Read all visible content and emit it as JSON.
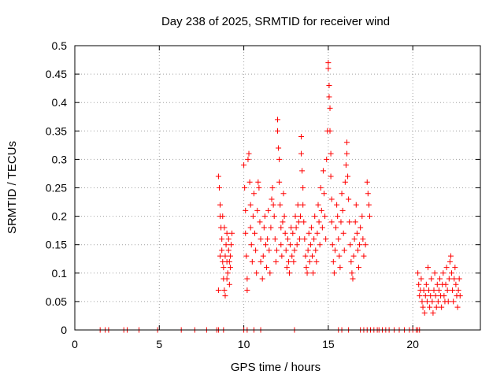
{
  "chart_data": {
    "type": "scatter",
    "title": "Day 238 of 2025, SRMTID for receiver wind",
    "xlabel": "GPS time / hours",
    "ylabel": "SRMTID / TECUs",
    "xlim": [
      0,
      24
    ],
    "ylim": [
      0,
      0.5
    ],
    "xticks": [
      0,
      5,
      10,
      15,
      20
    ],
    "xtick_labels": [
      "0",
      "5",
      "10",
      "15",
      "20"
    ],
    "yticks": [
      0,
      0.05,
      0.1,
      0.15,
      0.2,
      0.25,
      0.3,
      0.35,
      0.4,
      0.45,
      0.5
    ],
    "ytick_labels": [
      "0",
      "0.05",
      "0.1",
      "0.15",
      "0.2",
      "0.25",
      "0.3",
      "0.35",
      "0.4",
      "0.45",
      "0.5"
    ],
    "grid": true,
    "marker": "+",
    "color": "#ff0000",
    "series": [
      {
        "name": "SRMTID",
        "points": [
          [
            1.5,
            0
          ],
          [
            1.8,
            0
          ],
          [
            2.0,
            0
          ],
          [
            2.9,
            0
          ],
          [
            3.1,
            0
          ],
          [
            3.8,
            0
          ],
          [
            4.9,
            0
          ],
          [
            6.3,
            0
          ],
          [
            7.1,
            0
          ],
          [
            7.8,
            0
          ],
          [
            8.4,
            0
          ],
          [
            8.5,
            0
          ],
          [
            8.8,
            0
          ],
          [
            10.0,
            0
          ],
          [
            10.2,
            0
          ],
          [
            10.6,
            0
          ],
          [
            11.0,
            0
          ],
          [
            13.0,
            0
          ],
          [
            15.6,
            0
          ],
          [
            15.8,
            0
          ],
          [
            16.2,
            0
          ],
          [
            16.9,
            0
          ],
          [
            17.1,
            0
          ],
          [
            17.3,
            0
          ],
          [
            17.5,
            0
          ],
          [
            17.7,
            0
          ],
          [
            17.9,
            0
          ],
          [
            18.0,
            0
          ],
          [
            18.2,
            0
          ],
          [
            18.4,
            0
          ],
          [
            18.6,
            0
          ],
          [
            18.9,
            0
          ],
          [
            19.2,
            0
          ],
          [
            19.5,
            0
          ],
          [
            19.8,
            0
          ],
          [
            20.0,
            0
          ],
          [
            20.2,
            0
          ],
          [
            20.3,
            0
          ],
          [
            20.4,
            0
          ],
          [
            8.5,
            0.27
          ],
          [
            8.55,
            0.25
          ],
          [
            8.6,
            0.22
          ],
          [
            8.6,
            0.2
          ],
          [
            8.65,
            0.18
          ],
          [
            8.7,
            0.16
          ],
          [
            8.7,
            0.14
          ],
          [
            8.75,
            0.12
          ],
          [
            8.8,
            0.11
          ],
          [
            8.8,
            0.09
          ],
          [
            8.85,
            0.07
          ],
          [
            8.9,
            0.06
          ],
          [
            8.9,
            0.13
          ],
          [
            8.95,
            0.15
          ],
          [
            9.0,
            0.17
          ],
          [
            9.0,
            0.12
          ],
          [
            9.05,
            0.1
          ],
          [
            9.1,
            0.14
          ],
          [
            9.1,
            0.16
          ],
          [
            9.15,
            0.08
          ],
          [
            9.2,
            0.13
          ],
          [
            9.2,
            0.11
          ],
          [
            9.25,
            0.15
          ],
          [
            9.3,
            0.17
          ],
          [
            8.5,
            0.07
          ],
          [
            8.6,
            0.13
          ],
          [
            8.75,
            0.2
          ],
          [
            8.85,
            0.18
          ],
          [
            9.0,
            0.09
          ],
          [
            9.15,
            0.12
          ],
          [
            10.0,
            0.29
          ],
          [
            10.05,
            0.25
          ],
          [
            10.1,
            0.21
          ],
          [
            10.1,
            0.17
          ],
          [
            10.15,
            0.13
          ],
          [
            10.2,
            0.09
          ],
          [
            10.2,
            0.07
          ],
          [
            10.25,
            0.3
          ],
          [
            10.3,
            0.31
          ],
          [
            10.35,
            0.26
          ],
          [
            10.4,
            0.22
          ],
          [
            10.4,
            0.18
          ],
          [
            10.45,
            0.15
          ],
          [
            10.5,
            0.12
          ],
          [
            10.55,
            0.2
          ],
          [
            10.6,
            0.24
          ],
          [
            10.65,
            0.17
          ],
          [
            10.7,
            0.14
          ],
          [
            10.75,
            0.1
          ],
          [
            10.8,
            0.21
          ],
          [
            10.85,
            0.26
          ],
          [
            10.9,
            0.25
          ],
          [
            10.95,
            0.19
          ],
          [
            11.0,
            0.16
          ],
          [
            11.0,
            0.12
          ],
          [
            11.1,
            0.09
          ],
          [
            11.15,
            0.13
          ],
          [
            11.2,
            0.18
          ],
          [
            11.25,
            0.2
          ],
          [
            11.3,
            0.15
          ],
          [
            11.35,
            0.11
          ],
          [
            11.4,
            0.16
          ],
          [
            11.45,
            0.21
          ],
          [
            11.5,
            0.14
          ],
          [
            11.55,
            0.1
          ],
          [
            11.6,
            0.18
          ],
          [
            11.65,
            0.23
          ],
          [
            11.7,
            0.25
          ],
          [
            11.75,
            0.22
          ],
          [
            11.8,
            0.2
          ],
          [
            11.85,
            0.16
          ],
          [
            11.9,
            0.12
          ],
          [
            11.95,
            0.14
          ],
          [
            12.0,
            0.37
          ],
          [
            12.0,
            0.35
          ],
          [
            12.05,
            0.32
          ],
          [
            12.1,
            0.3
          ],
          [
            12.1,
            0.26
          ],
          [
            12.15,
            0.22
          ],
          [
            12.2,
            0.18
          ],
          [
            12.2,
            0.15
          ],
          [
            12.25,
            0.13
          ],
          [
            12.3,
            0.19
          ],
          [
            12.35,
            0.24
          ],
          [
            12.4,
            0.2
          ],
          [
            12.45,
            0.17
          ],
          [
            12.5,
            0.14
          ],
          [
            12.55,
            0.11
          ],
          [
            12.6,
            0.16
          ],
          [
            12.65,
            0.12
          ],
          [
            12.7,
            0.1
          ],
          [
            12.75,
            0.15
          ],
          [
            12.8,
            0.18
          ],
          [
            12.85,
            0.13
          ],
          [
            12.9,
            0.17
          ],
          [
            12.95,
            0.12
          ],
          [
            13.0,
            0.14
          ],
          [
            13.05,
            0.2
          ],
          [
            13.1,
            0.18
          ],
          [
            13.15,
            0.15
          ],
          [
            13.2,
            0.22
          ],
          [
            13.25,
            0.19
          ],
          [
            13.3,
            0.16
          ],
          [
            13.35,
            0.2
          ],
          [
            13.4,
            0.34
          ],
          [
            13.4,
            0.31
          ],
          [
            13.45,
            0.28
          ],
          [
            13.5,
            0.25
          ],
          [
            13.5,
            0.22
          ],
          [
            13.55,
            0.19
          ],
          [
            13.6,
            0.16
          ],
          [
            13.65,
            0.13
          ],
          [
            13.7,
            0.11
          ],
          [
            13.75,
            0.1
          ],
          [
            13.8,
            0.14
          ],
          [
            13.85,
            0.17
          ],
          [
            13.9,
            0.12
          ],
          [
            13.95,
            0.15
          ],
          [
            14.0,
            0.18
          ],
          [
            14.05,
            0.13
          ],
          [
            14.1,
            0.1
          ],
          [
            14.15,
            0.16
          ],
          [
            14.2,
            0.2
          ],
          [
            14.25,
            0.14
          ],
          [
            14.3,
            0.12
          ],
          [
            14.35,
            0.17
          ],
          [
            14.4,
            0.22
          ],
          [
            14.45,
            0.19
          ],
          [
            14.5,
            0.15
          ],
          [
            14.55,
            0.25
          ],
          [
            14.6,
            0.21
          ],
          [
            14.65,
            0.18
          ],
          [
            14.7,
            0.28
          ],
          [
            14.75,
            0.24
          ],
          [
            14.8,
            0.2
          ],
          [
            14.85,
            0.16
          ],
          [
            14.9,
            0.3
          ],
          [
            14.95,
            0.35
          ],
          [
            15.0,
            0.47
          ],
          [
            15.0,
            0.46
          ],
          [
            15.05,
            0.43
          ],
          [
            15.05,
            0.41
          ],
          [
            15.1,
            0.39
          ],
          [
            15.1,
            0.35
          ],
          [
            15.15,
            0.31
          ],
          [
            15.15,
            0.27
          ],
          [
            15.2,
            0.23
          ],
          [
            15.2,
            0.19
          ],
          [
            15.25,
            0.15
          ],
          [
            15.3,
            0.12
          ],
          [
            15.35,
            0.1
          ],
          [
            15.4,
            0.14
          ],
          [
            15.45,
            0.18
          ],
          [
            15.5,
            0.22
          ],
          [
            15.55,
            0.2
          ],
          [
            15.6,
            0.16
          ],
          [
            15.65,
            0.13
          ],
          [
            15.7,
            0.11
          ],
          [
            15.75,
            0.19
          ],
          [
            15.8,
            0.24
          ],
          [
            15.85,
            0.21
          ],
          [
            15.9,
            0.17
          ],
          [
            15.95,
            0.14
          ],
          [
            16.0,
            0.26
          ],
          [
            16.05,
            0.29
          ],
          [
            16.1,
            0.33
          ],
          [
            16.1,
            0.31
          ],
          [
            16.15,
            0.27
          ],
          [
            16.2,
            0.23
          ],
          [
            16.25,
            0.19
          ],
          [
            16.3,
            0.15
          ],
          [
            16.35,
            0.12
          ],
          [
            16.4,
            0.1
          ],
          [
            16.45,
            0.09
          ],
          [
            16.5,
            0.13
          ],
          [
            16.55,
            0.16
          ],
          [
            16.6,
            0.19
          ],
          [
            16.65,
            0.22
          ],
          [
            16.7,
            0.17
          ],
          [
            16.75,
            0.14
          ],
          [
            16.8,
            0.11
          ],
          [
            16.85,
            0.15
          ],
          [
            16.9,
            0.18
          ],
          [
            17.0,
            0.2
          ],
          [
            17.05,
            0.16
          ],
          [
            17.1,
            0.13
          ],
          [
            17.2,
            0.15
          ],
          [
            17.3,
            0.26
          ],
          [
            17.35,
            0.24
          ],
          [
            17.4,
            0.22
          ],
          [
            17.45,
            0.2
          ],
          [
            20.3,
            0.1
          ],
          [
            20.35,
            0.08
          ],
          [
            20.4,
            0.06
          ],
          [
            20.45,
            0.07
          ],
          [
            20.5,
            0.09
          ],
          [
            20.55,
            0.05
          ],
          [
            20.6,
            0.04
          ],
          [
            20.65,
            0.07
          ],
          [
            20.7,
            0.03
          ],
          [
            20.75,
            0.06
          ],
          [
            20.8,
            0.08
          ],
          [
            20.85,
            0.05
          ],
          [
            20.9,
            0.11
          ],
          [
            20.95,
            0.07
          ],
          [
            21.0,
            0.04
          ],
          [
            21.05,
            0.06
          ],
          [
            21.1,
            0.09
          ],
          [
            21.15,
            0.05
          ],
          [
            21.2,
            0.03
          ],
          [
            21.25,
            0.07
          ],
          [
            21.3,
            0.1
          ],
          [
            21.35,
            0.06
          ],
          [
            21.4,
            0.04
          ],
          [
            21.45,
            0.08
          ],
          [
            21.5,
            0.05
          ],
          [
            21.55,
            0.07
          ],
          [
            21.6,
            0.09
          ],
          [
            21.65,
            0.06
          ],
          [
            21.7,
            0.04
          ],
          [
            21.75,
            0.08
          ],
          [
            21.8,
            0.1
          ],
          [
            21.85,
            0.06
          ],
          [
            21.9,
            0.05
          ],
          [
            21.95,
            0.08
          ],
          [
            22.0,
            0.11
          ],
          [
            22.05,
            0.07
          ],
          [
            22.1,
            0.05
          ],
          [
            22.15,
            0.09
          ],
          [
            22.2,
            0.12
          ],
          [
            22.25,
            0.13
          ],
          [
            22.3,
            0.1
          ],
          [
            22.35,
            0.07
          ],
          [
            22.4,
            0.05
          ],
          [
            22.45,
            0.09
          ],
          [
            22.5,
            0.11
          ],
          [
            22.55,
            0.08
          ],
          [
            22.6,
            0.06
          ],
          [
            22.65,
            0.04
          ],
          [
            22.7,
            0.07
          ],
          [
            22.75,
            0.09
          ],
          [
            22.8,
            0.06
          ]
        ]
      }
    ]
  }
}
